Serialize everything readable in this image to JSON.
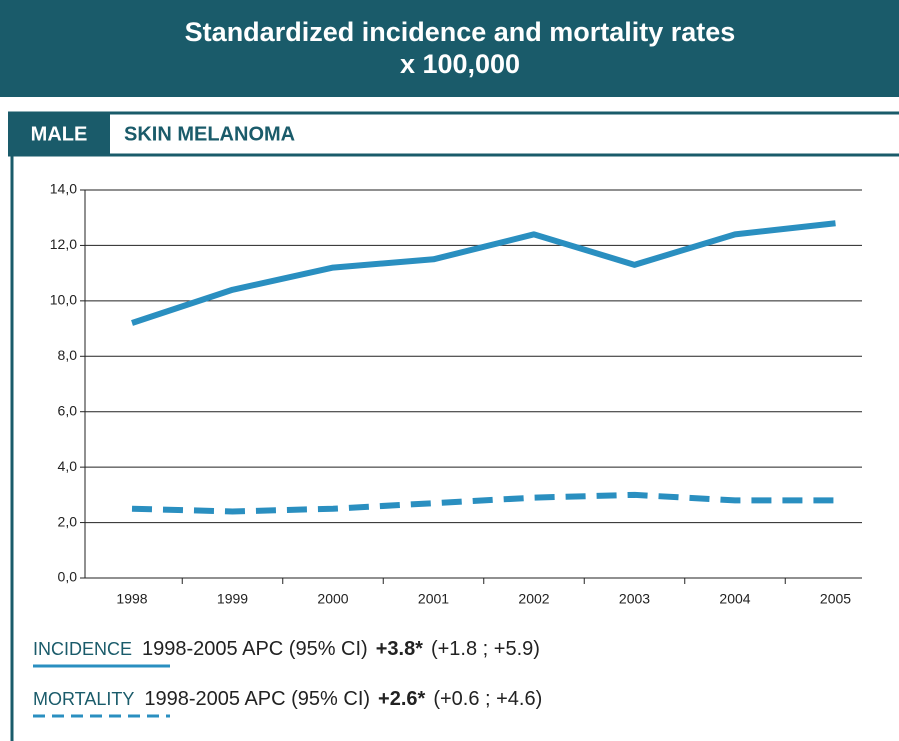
{
  "chart_data": {
    "type": "line",
    "title": "Standardized incidence and mortality rates",
    "subtitle": "x 100,000",
    "tab_label": "MALE",
    "section_label": "SKIN MELANOMA",
    "categories": [
      "1998",
      "1999",
      "2000",
      "2001",
      "2002",
      "2003",
      "2004",
      "2005"
    ],
    "series": [
      {
        "name": "INCIDENCE",
        "color": "#2a8fc0",
        "style": "solid",
        "values": [
          9.2,
          10.4,
          11.2,
          11.5,
          12.4,
          11.3,
          12.4,
          12.8
        ],
        "apc_label": "1998-2005 APC (95% CI)",
        "apc": "+3.8*",
        "ci": "(+1.8 ; +5.9)"
      },
      {
        "name": "MORTALITY",
        "color": "#2a8fc0",
        "style": "dashed",
        "values": [
          2.5,
          2.4,
          2.5,
          2.7,
          2.9,
          3.0,
          2.8,
          2.8
        ],
        "apc_label": "1998-2005 APC (95% CI)",
        "apc": "+2.6*",
        "ci": "(+0.6 ; +4.6)"
      }
    ],
    "ylim": [
      0,
      14
    ],
    "yticks": [
      {
        "value": 0,
        "label": "0,0"
      },
      {
        "value": 2,
        "label": "2,0"
      },
      {
        "value": 4,
        "label": "4,0"
      },
      {
        "value": 6,
        "label": "6,0"
      },
      {
        "value": 8,
        "label": "8,0"
      },
      {
        "value": 10,
        "label": "10,0"
      },
      {
        "value": 12,
        "label": "12,0"
      },
      {
        "value": 14,
        "label": "14,0"
      }
    ],
    "grid": true
  }
}
